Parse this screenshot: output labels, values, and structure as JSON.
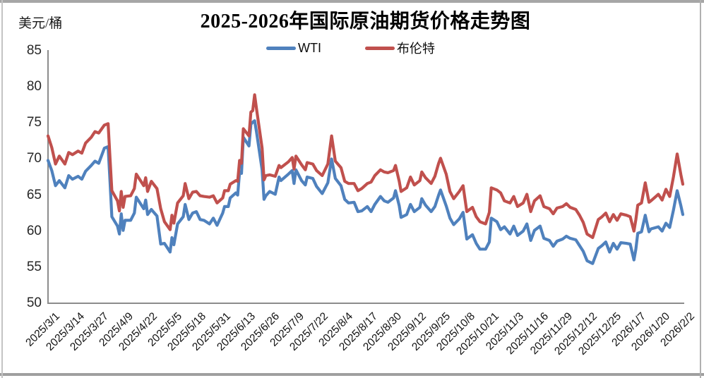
{
  "window": {
    "background": "#ffffff",
    "frame_color": "#a6a6a6"
  },
  "chart_data": {
    "type": "line",
    "title": "2025-2026年国际原油期货价格走势图",
    "unit_label": "美元/桶",
    "grid": false,
    "legend_position": "top",
    "ylim": [
      50,
      85
    ],
    "yticks": [
      85,
      80,
      75,
      70,
      65,
      60,
      55,
      50
    ],
    "x_range_days": [
      0,
      338
    ],
    "xtick_interval_days": 13,
    "xtick_labels": [
      "2025/3/1",
      "2025/3/14",
      "2025/3/27",
      "2025/4/9",
      "2025/4/22",
      "2025/5/5",
      "2025/5/18",
      "2025/5/31",
      "2025/6/13",
      "2025/6/26",
      "2025/7/9",
      "2025/7/22",
      "2025/8/4",
      "2025/8/17",
      "2025/8/30",
      "2025/9/12",
      "2025/9/25",
      "2025/10/8",
      "2025/10/21",
      "2025/11/3",
      "2025/11/16",
      "2025/11/29",
      "2025/12/12",
      "2025/12/25",
      "2026/1/7",
      "2026/1/20",
      "2026/2/2"
    ],
    "axis_color": "#8c8c8c",
    "x_days": [
      0,
      2,
      4,
      6,
      9,
      11,
      13,
      16,
      18,
      20,
      23,
      25,
      27,
      30,
      32,
      33,
      34,
      37,
      38,
      39,
      40,
      41,
      44,
      46,
      47,
      51,
      52,
      53,
      55,
      58,
      60,
      62,
      65,
      66,
      67,
      69,
      72,
      73,
      75,
      77,
      79,
      81,
      83,
      86,
      88,
      90,
      93,
      94,
      96,
      97,
      100,
      101,
      102,
      103,
      104,
      107,
      108,
      109,
      110,
      111,
      114,
      115,
      116,
      118,
      121,
      123,
      124,
      128,
      130,
      131,
      132,
      135,
      137,
      138,
      141,
      143,
      146,
      149,
      151,
      153,
      156,
      158,
      160,
      163,
      165,
      167,
      170,
      172,
      174,
      177,
      179,
      181,
      184,
      185,
      187,
      188,
      191,
      193,
      195,
      198,
      199,
      201,
      204,
      206,
      208,
      209,
      212,
      214,
      216,
      219,
      221,
      223,
      226,
      228,
      230,
      233,
      235,
      236,
      239,
      241,
      243,
      246,
      248,
      250,
      253,
      255,
      257,
      259,
      262,
      264,
      267,
      269,
      271,
      274,
      276,
      278,
      281,
      283,
      285,
      287,
      290,
      293,
      295,
      297,
      299,
      301,
      303,
      305,
      308,
      310,
      312,
      313,
      314,
      316,
      318,
      320,
      321,
      325,
      327,
      329,
      331,
      333,
      335,
      337,
      338
    ],
    "series": [
      {
        "name": "WTI",
        "key": "wti",
        "color": "#4f81bd",
        "values": [
          69.8,
          68.4,
          66.3,
          67.0,
          66.0,
          67.7,
          67.2,
          67.6,
          67.2,
          68.3,
          69.1,
          69.7,
          69.4,
          71.5,
          71.7,
          66.9,
          62.0,
          60.7,
          59.6,
          62.4,
          60.1,
          61.5,
          61.5,
          62.5,
          64.7,
          63.1,
          64.3,
          62.3,
          63.0,
          62.1,
          58.2,
          58.3,
          57.1,
          59.1,
          58.1,
          61.0,
          62.0,
          63.7,
          61.6,
          62.5,
          62.7,
          61.6,
          61.5,
          61.0,
          61.8,
          60.8,
          62.5,
          63.4,
          63.4,
          64.6,
          65.3,
          65.0,
          68.2,
          68.0,
          73.0,
          71.8,
          74.8,
          75.1,
          75.3,
          73.8,
          68.5,
          64.4,
          64.9,
          65.5,
          65.1,
          67.5,
          67.0,
          67.9,
          68.4,
          66.6,
          68.5,
          67.0,
          66.4,
          67.5,
          67.3,
          66.2,
          65.2,
          66.7,
          70.0,
          67.3,
          66.3,
          64.4,
          63.9,
          64.0,
          62.7,
          62.8,
          63.4,
          62.7,
          63.7,
          64.8,
          64.2,
          64.0,
          64.6,
          65.6,
          63.5,
          61.9,
          62.3,
          63.7,
          62.7,
          63.3,
          64.5,
          63.6,
          62.7,
          63.4,
          65.0,
          65.7,
          63.5,
          61.8,
          60.9,
          61.7,
          62.6,
          58.9,
          59.5,
          58.3,
          57.5,
          57.5,
          58.5,
          61.8,
          61.3,
          60.2,
          60.6,
          59.6,
          60.7,
          59.4,
          60.0,
          61.0,
          58.7,
          60.1,
          60.7,
          59.0,
          58.7,
          57.9,
          58.6,
          58.9,
          59.3,
          59.0,
          58.8,
          58.0,
          57.2,
          55.9,
          55.5,
          57.6,
          58.0,
          58.5,
          57.1,
          58.3,
          57.5,
          58.4,
          58.3,
          58.2,
          56.0,
          57.5,
          59.7,
          59.9,
          62.2,
          59.9,
          60.3,
          60.6,
          60.0,
          61.1,
          60.5,
          62.9,
          65.6,
          63.5,
          62.3
        ]
      },
      {
        "name": "布伦特",
        "key": "brent",
        "color": "#c0504d",
        "values": [
          73.2,
          71.6,
          69.3,
          70.4,
          69.3,
          70.9,
          70.6,
          71.1,
          70.8,
          72.2,
          73.0,
          73.8,
          73.6,
          74.7,
          74.9,
          70.1,
          65.6,
          64.2,
          62.8,
          65.5,
          63.3,
          64.8,
          64.9,
          65.9,
          67.9,
          66.3,
          67.4,
          65.5,
          66.9,
          65.9,
          63.1,
          61.3,
          60.2,
          62.2,
          61.1,
          63.9,
          64.9,
          66.6,
          64.5,
          65.4,
          65.5,
          64.9,
          64.8,
          64.7,
          64.9,
          63.9,
          64.6,
          65.6,
          65.6,
          66.5,
          67.0,
          66.9,
          69.8,
          69.4,
          74.2,
          73.2,
          76.5,
          76.7,
          78.9,
          77.0,
          71.5,
          67.1,
          67.7,
          67.8,
          67.6,
          69.1,
          68.8,
          69.6,
          70.2,
          68.6,
          70.4,
          69.2,
          68.5,
          69.5,
          69.3,
          68.4,
          67.7,
          69.3,
          73.2,
          69.7,
          68.8,
          66.9,
          66.6,
          66.6,
          65.6,
          65.9,
          66.6,
          66.8,
          67.7,
          68.5,
          68.2,
          68.1,
          68.4,
          69.1,
          66.9,
          65.5,
          66.0,
          67.5,
          66.4,
          67.0,
          68.2,
          67.4,
          66.6,
          67.6,
          69.4,
          70.1,
          67.9,
          65.5,
          64.5,
          65.5,
          66.3,
          62.7,
          63.3,
          62.0,
          61.3,
          61.0,
          62.6,
          66.0,
          65.7,
          65.3,
          64.2,
          63.9,
          64.8,
          63.4,
          63.9,
          65.1,
          62.7,
          64.2,
          64.9,
          63.4,
          63.1,
          62.4,
          63.2,
          63.4,
          63.8,
          63.3,
          63.0,
          62.2,
          61.2,
          59.6,
          59.1,
          61.6,
          62.0,
          62.5,
          61.3,
          62.3,
          61.5,
          62.4,
          62.2,
          62.0,
          60.0,
          61.6,
          63.6,
          63.9,
          66.7,
          64.0,
          64.2,
          65.1,
          64.3,
          65.8,
          64.8,
          67.5,
          70.7,
          67.8,
          66.5
        ]
      }
    ]
  }
}
